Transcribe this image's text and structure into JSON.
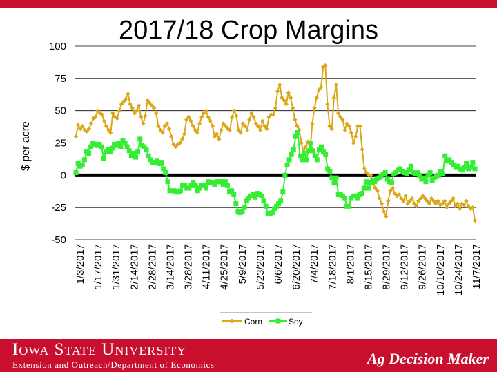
{
  "header": {
    "band_color": "#c8102e"
  },
  "footer": {
    "university": "Iowa State University",
    "department": "Extension and Outreach/Department of Economics",
    "program": "Ag Decision Maker",
    "background": "#c8102e"
  },
  "chart_data": {
    "type": "line",
    "title": "2017/18 Crop Margins",
    "ylabel": "$ per acre",
    "xlabel": "",
    "ylim": [
      -50,
      100
    ],
    "yticks": [
      100,
      75,
      50,
      25,
      0,
      -25,
      -50
    ],
    "grid": "horizontal",
    "legend_position": "bottom",
    "zero_line": true,
    "x_tick_labels": [
      "1/3/2017",
      "1/17/2017",
      "1/31/2017",
      "2/14/2017",
      "2/28/2017",
      "3/14/2017",
      "3/28/2017",
      "4/11/2017",
      "4/25/2017",
      "5/9/2017",
      "5/23/2017",
      "6/6/2017",
      "6/20/2017",
      "7/4/2017",
      "7/18/2017",
      "8/1/2017",
      "8/15/2017",
      "8/29/2017",
      "9/12/2017",
      "9/26/2017",
      "10/10/2017",
      "10/24/2017",
      "11/7/2017"
    ],
    "x_start": "1/3/2017",
    "x_end": "11/14/2017",
    "series": [
      {
        "name": "Corn",
        "color": "#dba617",
        "marker": "diamond",
        "values": [
          30,
          39,
          36,
          38,
          35,
          34,
          36,
          40,
          44,
          45,
          50,
          48,
          47,
          42,
          38,
          35,
          33,
          48,
          45,
          44,
          50,
          55,
          57,
          59,
          63,
          55,
          52,
          48,
          50,
          54,
          45,
          40,
          46,
          58,
          56,
          54,
          52,
          48,
          38,
          35,
          33,
          38,
          40,
          36,
          30,
          24,
          22,
          24,
          25,
          28,
          32,
          43,
          45,
          42,
          38,
          35,
          33,
          40,
          45,
          48,
          50,
          45,
          42,
          38,
          30,
          32,
          28,
          35,
          40,
          38,
          36,
          35,
          45,
          50,
          46,
          35,
          33,
          40,
          38,
          35,
          43,
          48,
          45,
          40,
          38,
          35,
          42,
          38,
          36,
          45,
          47,
          47,
          52,
          65,
          70,
          60,
          58,
          55,
          64,
          60,
          52,
          43,
          38,
          35,
          25,
          18,
          22,
          26,
          20,
          40,
          52,
          60,
          66,
          68,
          84,
          85,
          55,
          38,
          36,
          60,
          70,
          48,
          45,
          43,
          35,
          40,
          38,
          33,
          25,
          30,
          38,
          38,
          20,
          5,
          2,
          0,
          0,
          -5,
          -10,
          -12,
          -18,
          -22,
          -28,
          -32,
          -20,
          -12,
          -10,
          -14,
          -16,
          -15,
          -18,
          -20,
          -16,
          -22,
          -20,
          -18,
          -22,
          -24,
          -20,
          -18,
          -16,
          -18,
          -20,
          -22,
          -18,
          -20,
          -22,
          -20,
          -23,
          -22,
          -20,
          -25,
          -22,
          -20,
          -18,
          -24,
          -22,
          -26,
          -22,
          -23,
          -20,
          -24,
          -26,
          -25,
          -35
        ]
      },
      {
        "name": "Soy",
        "color": "#33ee33",
        "marker": "square",
        "values": [
          2,
          9,
          7,
          8,
          12,
          18,
          17,
          22,
          25,
          24,
          23,
          24,
          22,
          13,
          18,
          20,
          18,
          21,
          24,
          23,
          25,
          22,
          27,
          25,
          22,
          19,
          15,
          17,
          14,
          18,
          28,
          23,
          22,
          20,
          15,
          12,
          10,
          10,
          11,
          9,
          10,
          5,
          2,
          -5,
          -12,
          -12,
          -12,
          -13,
          -13,
          -12,
          -8,
          -8,
          -10,
          -10,
          -8,
          -6,
          -8,
          -12,
          -10,
          -8,
          -8,
          -10,
          -5,
          -6,
          -6,
          -7,
          -5,
          -5,
          -5,
          -7,
          -5,
          -8,
          -13,
          -12,
          -15,
          -22,
          -28,
          -29,
          -28,
          -25,
          -20,
          -18,
          -16,
          -15,
          -17,
          -14,
          -15,
          -16,
          -20,
          -24,
          -30,
          -30,
          -29,
          -26,
          -24,
          -22,
          -20,
          -13,
          0,
          8,
          12,
          16,
          20,
          30,
          33,
          15,
          12,
          17,
          12,
          19,
          25,
          19,
          15,
          12,
          20,
          22,
          18,
          16,
          5,
          3,
          -2,
          -6,
          -2,
          -15,
          -15,
          -16,
          -18,
          -24,
          -24,
          -18,
          -16,
          -16,
          -18,
          -15,
          -14,
          -10,
          -5,
          -10,
          -6,
          -4,
          -5,
          -3,
          -2,
          -1,
          1,
          2,
          -3,
          -5,
          -6,
          1,
          2,
          4,
          5,
          3,
          2,
          1,
          4,
          7,
          2,
          1,
          2,
          0,
          -3,
          -2,
          -5,
          0,
          2,
          -4,
          -2,
          -1,
          0,
          3,
          1,
          15,
          11,
          12,
          10,
          8,
          6,
          7,
          5,
          4,
          6,
          9,
          5,
          6,
          10,
          5
        ]
      }
    ]
  }
}
